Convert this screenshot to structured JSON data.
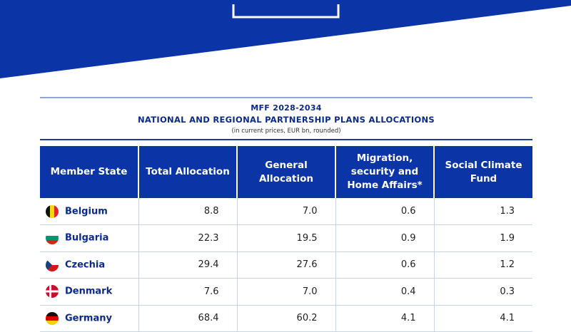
{
  "header": {
    "title_line1": "MFF 2028-2034",
    "title_line2": "NATIONAL AND REGIONAL PARTNERSHIP PLANS ALLOCATIONS",
    "subtitle": "(in current prices, EUR bn, rounded)"
  },
  "colors": {
    "eu_blue": "#0b35a6",
    "title_blue": "#0b2a8a"
  },
  "table": {
    "columns": [
      "Member State",
      "Total Allocation",
      "General Allocation",
      "Migration, security and Home Affairs*",
      "Social Climate Fund"
    ],
    "rows": [
      {
        "state": "Belgium",
        "flag": "belgium-flag-icon",
        "total": "8.8",
        "general": "7.0",
        "migration": "0.6",
        "climate": "1.3"
      },
      {
        "state": "Bulgaria",
        "flag": "bulgaria-flag-icon",
        "total": "22.3",
        "general": "19.5",
        "migration": "0.9",
        "climate": "1.9"
      },
      {
        "state": "Czechia",
        "flag": "czechia-flag-icon",
        "total": "29.4",
        "general": "27.6",
        "migration": "0.6",
        "climate": "1.2"
      },
      {
        "state": "Denmark",
        "flag": "denmark-flag-icon",
        "total": "7.6",
        "general": "7.0",
        "migration": "0.4",
        "climate": "0.3"
      },
      {
        "state": "Germany",
        "flag": "germany-flag-icon",
        "total": "68.4",
        "general": "60.2",
        "migration": "4.1",
        "climate": "4.1"
      }
    ]
  }
}
